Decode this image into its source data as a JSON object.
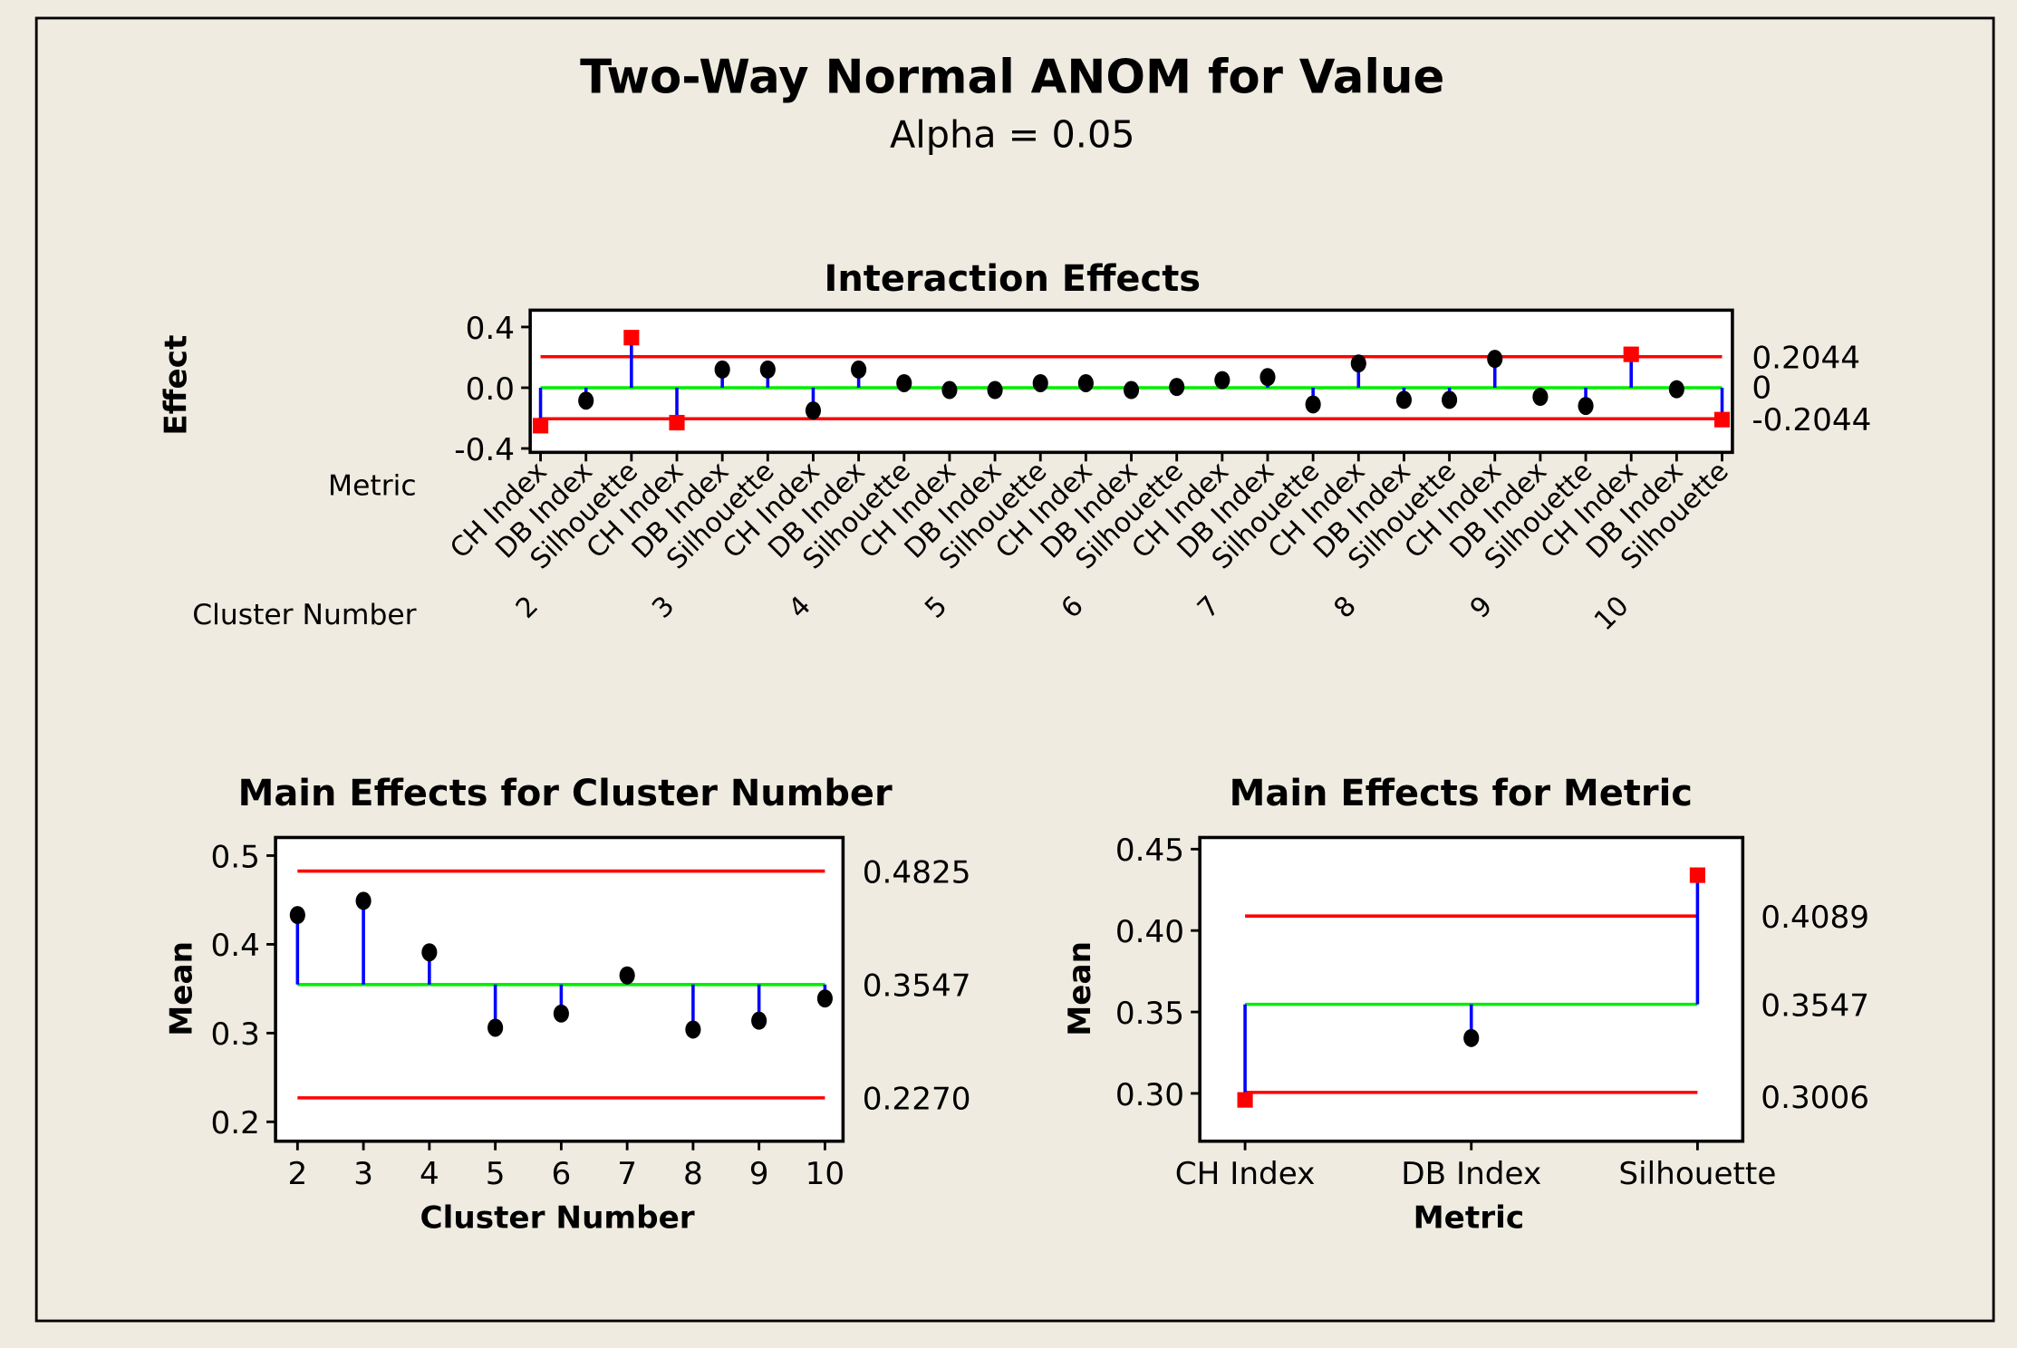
{
  "title": "Two-Way Normal ANOM for Value",
  "subtitle": "Alpha = 0.05",
  "colors": {
    "limit": "#ff0000",
    "center": "#00ee00",
    "stem": "#0000ff",
    "point": "#000000",
    "out": "#ff0000",
    "background": "#efebe0"
  },
  "chart_data": [
    {
      "type": "scatter",
      "title": "Interaction Effects",
      "ylabel": "Effect",
      "row_labels": {
        "metric": "Metric",
        "cluster": "Cluster Number"
      },
      "metrics": [
        "CH Index",
        "DB Index",
        "Silhouette"
      ],
      "clusters": [
        "2",
        "3",
        "4",
        "5",
        "6",
        "7",
        "8",
        "9",
        "10"
      ],
      "values": [
        -0.25,
        -0.085,
        0.33,
        -0.23,
        0.12,
        0.12,
        -0.15,
        0.12,
        0.03,
        -0.015,
        -0.015,
        0.03,
        0.03,
        -0.015,
        0.005,
        0.05,
        0.07,
        -0.11,
        0.16,
        -0.08,
        -0.08,
        0.19,
        -0.06,
        -0.12,
        0.22,
        -0.01,
        -0.21
      ],
      "ylim": [
        -0.4,
        0.4
      ],
      "yticks": [
        "0.4",
        "0.0",
        "-0.4"
      ],
      "center": 0,
      "center_label": "0",
      "ucl": 0.2044,
      "ucl_label": "0.2044",
      "lcl": -0.2044,
      "lcl_label": "-0.2044"
    },
    {
      "type": "scatter",
      "title": "Main Effects for Cluster Number",
      "xlabel": "Cluster Number",
      "ylabel": "Mean",
      "categories": [
        "2",
        "3",
        "4",
        "5",
        "6",
        "7",
        "8",
        "9",
        "10"
      ],
      "values": [
        0.433,
        0.449,
        0.391,
        0.306,
        0.322,
        0.365,
        0.304,
        0.314,
        0.339
      ],
      "ylim": [
        0.2,
        0.5
      ],
      "yticks": [
        "0.5",
        "0.4",
        "0.3",
        "0.2"
      ],
      "center": 0.3547,
      "center_label": "0.3547",
      "ucl": 0.4825,
      "ucl_label": "0.4825",
      "lcl": 0.227,
      "lcl_label": "0.2270"
    },
    {
      "type": "scatter",
      "title": "Main Effects for Metric",
      "xlabel": "Metric",
      "ylabel": "Mean",
      "categories": [
        "CH Index",
        "DB Index",
        "Silhouette"
      ],
      "values": [
        0.296,
        0.334,
        0.434
      ],
      "ylim": [
        0.3,
        0.45
      ],
      "yticks": [
        "0.45",
        "0.40",
        "0.35",
        "0.30"
      ],
      "center": 0.3547,
      "center_label": "0.3547",
      "ucl": 0.4089,
      "ucl_label": "0.4089",
      "lcl": 0.3006,
      "lcl_label": "0.3006"
    }
  ]
}
